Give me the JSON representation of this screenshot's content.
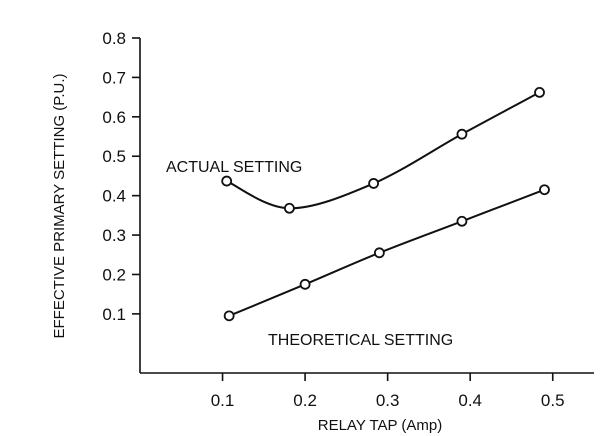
{
  "chart_data": {
    "type": "line",
    "xlabel": "RELAY TAP (Amp)",
    "ylabel": "EFFECTIVE PRIMARY SETTING (P.U.)",
    "xlim": [
      0.0,
      0.55
    ],
    "ylim": [
      -0.05,
      0.8
    ],
    "x_ticks": [
      0.1,
      0.2,
      0.3,
      0.4,
      0.5
    ],
    "x_tick_labels": [
      "0.1",
      "0.2",
      "0.3",
      "0.4",
      "0.5"
    ],
    "y_ticks": [
      0.1,
      0.2,
      0.3,
      0.4,
      0.5,
      0.6,
      0.7,
      0.8
    ],
    "y_tick_labels": [
      "0.1",
      "0.2",
      "0.3",
      "0.4",
      "0.5",
      "0.6",
      "0.7",
      "0.8"
    ],
    "grid": false,
    "series": [
      {
        "name": "ACTUAL SETTING",
        "x": [
          0.105,
          0.181,
          0.283,
          0.39,
          0.484
        ],
        "y": [
          0.437,
          0.368,
          0.431,
          0.556,
          0.662
        ]
      },
      {
        "name": "THEORETICAL SETTING",
        "x": [
          0.108,
          0.2,
          0.29,
          0.39,
          0.49
        ],
        "y": [
          0.095,
          0.175,
          0.255,
          0.335,
          0.415
        ]
      }
    ]
  }
}
